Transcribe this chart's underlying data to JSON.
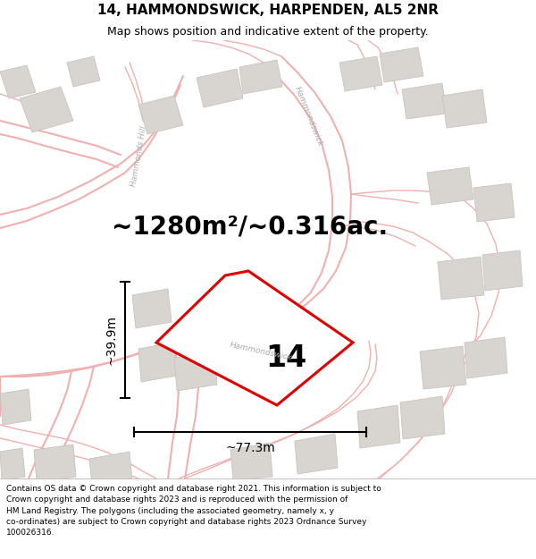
{
  "title": "14, HAMMONDSWICK, HARPENDEN, AL5 2NR",
  "subtitle": "Map shows position and indicative extent of the property.",
  "area_text": "~1280m²/~0.316ac.",
  "number_label": "14",
  "width_label": "~77.3m",
  "height_label": "~39.9m",
  "footer": "Contains OS data © Crown copyright and database right 2021. This information is subject to\nCrown copyright and database rights 2023 and is reproduced with the permission of\nHM Land Registry. The polygons (including the associated geometry, namely x, y\nco-ordinates) are subject to Crown copyright and database rights 2023 Ordnance Survey\n100026316.",
  "bg_color": "#ffffff",
  "map_bg_color": "#ffffff",
  "road_line_color": "#f0b0b0",
  "building_fill": "#d8d4cf",
  "building_outline": "#c8c4bf",
  "plot_edge": "#e00000",
  "plot_fill": "none",
  "dim_color": "#000000",
  "label_color": "#000000",
  "road_label_color": "#aaaaaa",
  "title_fontsize": 11,
  "subtitle_fontsize": 9,
  "area_fontsize": 20,
  "number_fontsize": 24,
  "dim_fontsize": 10,
  "footer_fontsize": 6.5
}
